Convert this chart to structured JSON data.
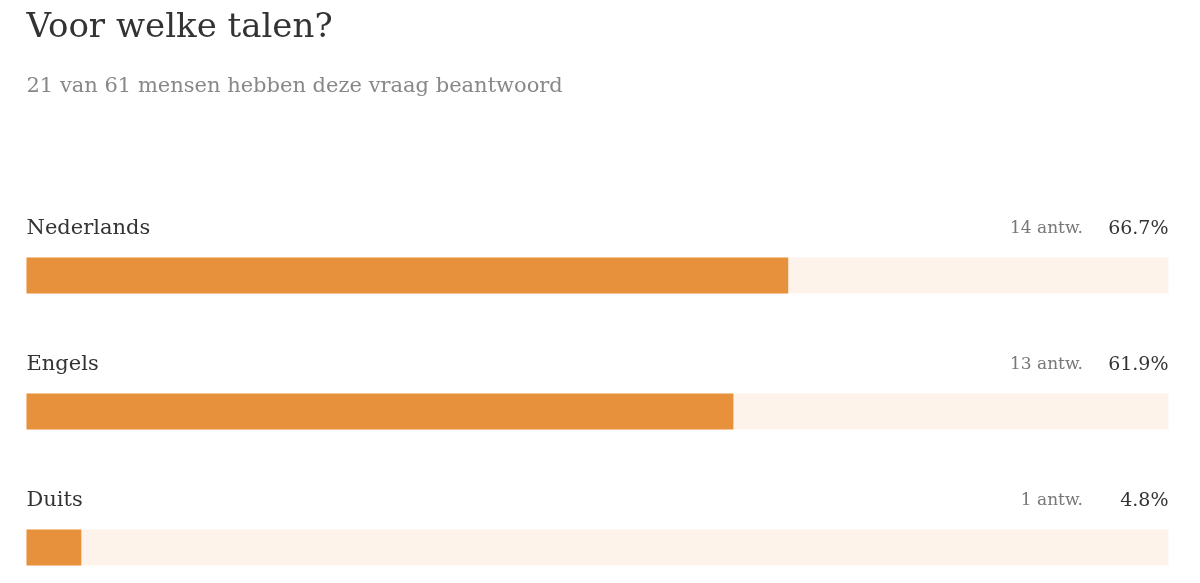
{
  "chart_data": {
    "type": "bar",
    "orientation": "horizontal",
    "title": "Voor welke talen?",
    "subtitle": "21 van 61 mensen hebben deze vraag beantwoord",
    "categories": [
      "Nederlands",
      "Engels",
      "Duits"
    ],
    "xlim": [
      0,
      100
    ],
    "tick_labels": false,
    "series": [
      {
        "color": "#e8913c",
        "values": [
          66.7,
          61.9,
          4.8
        ],
        "value_labels": [
          "66.7%",
          "61.9%",
          "4.8%"
        ]
      }
    ],
    "annotations": [
      "14 antw.",
      "13 antw.",
      "1 antw."
    ]
  }
}
